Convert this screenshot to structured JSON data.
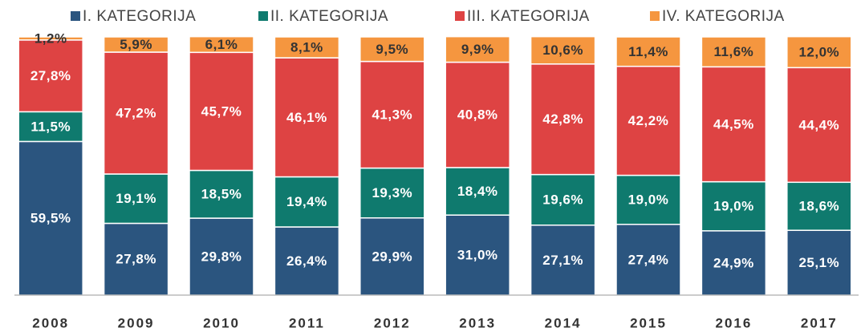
{
  "chart_data": {
    "type": "stacked_bar",
    "categories": [
      "2008",
      "2009",
      "2010",
      "2011",
      "2012",
      "2013",
      "2014",
      "2015",
      "2016",
      "2017"
    ],
    "ylim": [
      0,
      100
    ],
    "legend": "top",
    "series": [
      {
        "name": "I. KATEGORIJA",
        "color": "#2b557f",
        "label_color": "#ffffff",
        "values": [
          59.5,
          27.8,
          29.8,
          26.4,
          29.9,
          31.0,
          27.1,
          27.4,
          24.9,
          25.1
        ],
        "value_labels": [
          "59,5%",
          "27,8%",
          "29,8%",
          "26,4%",
          "29,9%",
          "31,0%",
          "27,1%",
          "27,4%",
          "24,9%",
          "25,1%"
        ]
      },
      {
        "name": "II. KATEGORIJA",
        "color": "#0f7a6e",
        "label_color": "#ffffff",
        "values": [
          11.5,
          19.1,
          18.5,
          19.4,
          19.3,
          18.4,
          19.6,
          19.0,
          19.0,
          18.6
        ],
        "value_labels": [
          "11,5%",
          "19,1%",
          "18,5%",
          "19,4%",
          "19,3%",
          "18,4%",
          "19,6%",
          "19,0%",
          "19,0%",
          "18,6%"
        ]
      },
      {
        "name": "III. KATEGORIJA",
        "color": "#de4343",
        "label_color": "#ffffff",
        "values": [
          27.8,
          47.2,
          45.7,
          46.1,
          41.3,
          40.8,
          42.8,
          42.2,
          44.5,
          44.4
        ],
        "value_labels": [
          "27,8%",
          "47,2%",
          "45,7%",
          "46,1%",
          "41,3%",
          "40,8%",
          "42,8%",
          "42,2%",
          "44,5%",
          "44,4%"
        ]
      },
      {
        "name": "IV. KATEGORIJA",
        "color": "#f5963f",
        "label_color": "#333333",
        "values": [
          1.2,
          5.9,
          6.1,
          8.1,
          9.5,
          9.9,
          10.6,
          11.4,
          11.6,
          12.0
        ],
        "value_labels": [
          "1,2%",
          "5,9%",
          "6,1%",
          "8,1%",
          "9,5%",
          "9,9%",
          "10,6%",
          "11,4%",
          "11,6%",
          "12,0%"
        ]
      }
    ]
  }
}
